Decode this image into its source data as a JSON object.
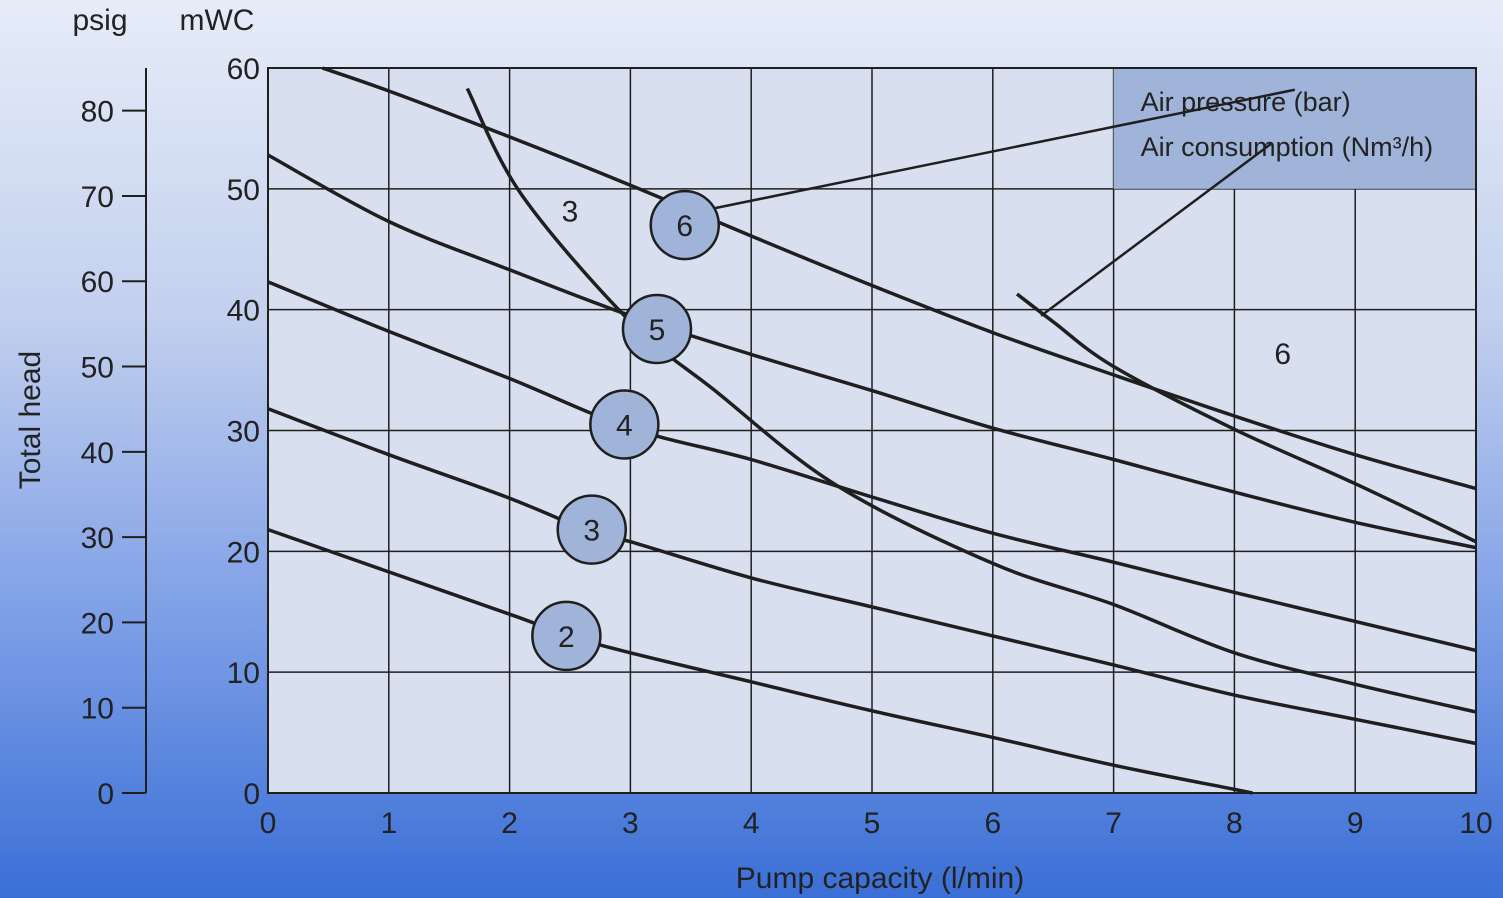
{
  "chart_data": {
    "type": "line",
    "xlabel": "Pump capacity (l/min)",
    "ylabel": "Total head",
    "y_unit_primary": "mWC",
    "y_unit_secondary": "psig",
    "xlim": [
      0,
      10
    ],
    "ylim": [
      0,
      60
    ],
    "y2lim": [
      0,
      85
    ],
    "x_ticks": [
      "0",
      "1",
      "2",
      "3",
      "4",
      "5",
      "6",
      "7",
      "8",
      "9",
      "10"
    ],
    "y_ticks": [
      "0",
      "10",
      "20",
      "30",
      "40",
      "50",
      "60"
    ],
    "y2_ticks": [
      "0",
      "10",
      "20",
      "30",
      "40",
      "50",
      "60",
      "70",
      "80"
    ],
    "grid": true,
    "legend": {
      "position": "top-right",
      "entries": [
        "Air pressure (bar)",
        "Air consumption (Nm³/h)"
      ],
      "color": "#9fb4d8"
    },
    "pressure_series": [
      {
        "name": "2",
        "points": [
          [
            0,
            21.8
          ],
          [
            1,
            18.3
          ],
          [
            2,
            14.8
          ],
          [
            2.5,
            13
          ],
          [
            3,
            11.6
          ],
          [
            4,
            9.2
          ],
          [
            5,
            6.8
          ],
          [
            6,
            4.6
          ],
          [
            7,
            2.3
          ],
          [
            8,
            0.3
          ],
          [
            8.15,
            0
          ]
        ]
      },
      {
        "name": "3",
        "points": [
          [
            0,
            31.8
          ],
          [
            1,
            28
          ],
          [
            2,
            24.4
          ],
          [
            2.7,
            21.5
          ],
          [
            3,
            20.8
          ],
          [
            4,
            17.8
          ],
          [
            5,
            15.4
          ],
          [
            6,
            13
          ],
          [
            7,
            10.6
          ],
          [
            8,
            8.1
          ],
          [
            9,
            6.1
          ],
          [
            10,
            4.1
          ]
        ]
      },
      {
        "name": "4",
        "points": [
          [
            0,
            42.3
          ],
          [
            1,
            38.2
          ],
          [
            2,
            34.3
          ],
          [
            3,
            30.2
          ],
          [
            4,
            27.6
          ],
          [
            5,
            24.5
          ],
          [
            6,
            21.5
          ],
          [
            7,
            19.1
          ],
          [
            8,
            16.6
          ],
          [
            9,
            14.2
          ],
          [
            10,
            11.8
          ]
        ]
      },
      {
        "name": "5",
        "points": [
          [
            0,
            52.8
          ],
          [
            1,
            47.3
          ],
          [
            2,
            43.3
          ],
          [
            3,
            39.5
          ],
          [
            4,
            36.3
          ],
          [
            5,
            33.3
          ],
          [
            6,
            30.2
          ],
          [
            7,
            27.6
          ],
          [
            8,
            24.9
          ],
          [
            9,
            22.4
          ],
          [
            10,
            20.3
          ]
        ]
      },
      {
        "name": "6",
        "points": [
          [
            0.45,
            60
          ],
          [
            1,
            58.1
          ],
          [
            2,
            54.3
          ],
          [
            3,
            50.3
          ],
          [
            4,
            46.1
          ],
          [
            5,
            42
          ],
          [
            6,
            38.1
          ],
          [
            7,
            34.6
          ],
          [
            8,
            31.2
          ],
          [
            9,
            28
          ],
          [
            10,
            25.2
          ]
        ]
      }
    ],
    "consumption_series": [
      {
        "name": "3",
        "points": [
          [
            1.65,
            58.3
          ],
          [
            2.1,
            49.5
          ],
          [
            3,
            39
          ],
          [
            3.7,
            33.3
          ],
          [
            4.7,
            25.5
          ],
          [
            6,
            19
          ],
          [
            7,
            15.6
          ],
          [
            8,
            11.6
          ],
          [
            9,
            9
          ],
          [
            10,
            6.7
          ]
        ]
      },
      {
        "name": "6",
        "points": [
          [
            6.2,
            41.3
          ],
          [
            6.5,
            39
          ],
          [
            7,
            35.3
          ],
          [
            8,
            30.1
          ],
          [
            9,
            25.6
          ],
          [
            10,
            20.8
          ]
        ]
      }
    ],
    "pressure_markers": [
      {
        "label": "2",
        "x": 2.47,
        "y": 13
      },
      {
        "label": "3",
        "x": 2.68,
        "y": 21.8
      },
      {
        "label": "4",
        "x": 2.95,
        "y": 30.5
      },
      {
        "label": "5",
        "x": 3.22,
        "y": 38.4
      },
      {
        "label": "6",
        "x": 3.45,
        "y": 47
      }
    ],
    "consumption_labels": [
      {
        "label": "3",
        "x": 2.5,
        "y": 48.2
      },
      {
        "label": "6",
        "x": 8.4,
        "y": 36.4
      }
    ],
    "leaders": [
      {
        "from": [
          3.65,
          48.3
        ],
        "to": [
          8.5,
          58.2
        ],
        "legend_entry": 0
      },
      {
        "from": [
          6.4,
          39.5
        ],
        "to": [
          8.3,
          53.7
        ],
        "legend_entry": 1
      }
    ],
    "colors": {
      "plot_bg": "#d8e0ef",
      "line": "#1f1f1f",
      "grid": "#1f1f1f",
      "marker_fill": "#9fb4d8"
    }
  }
}
